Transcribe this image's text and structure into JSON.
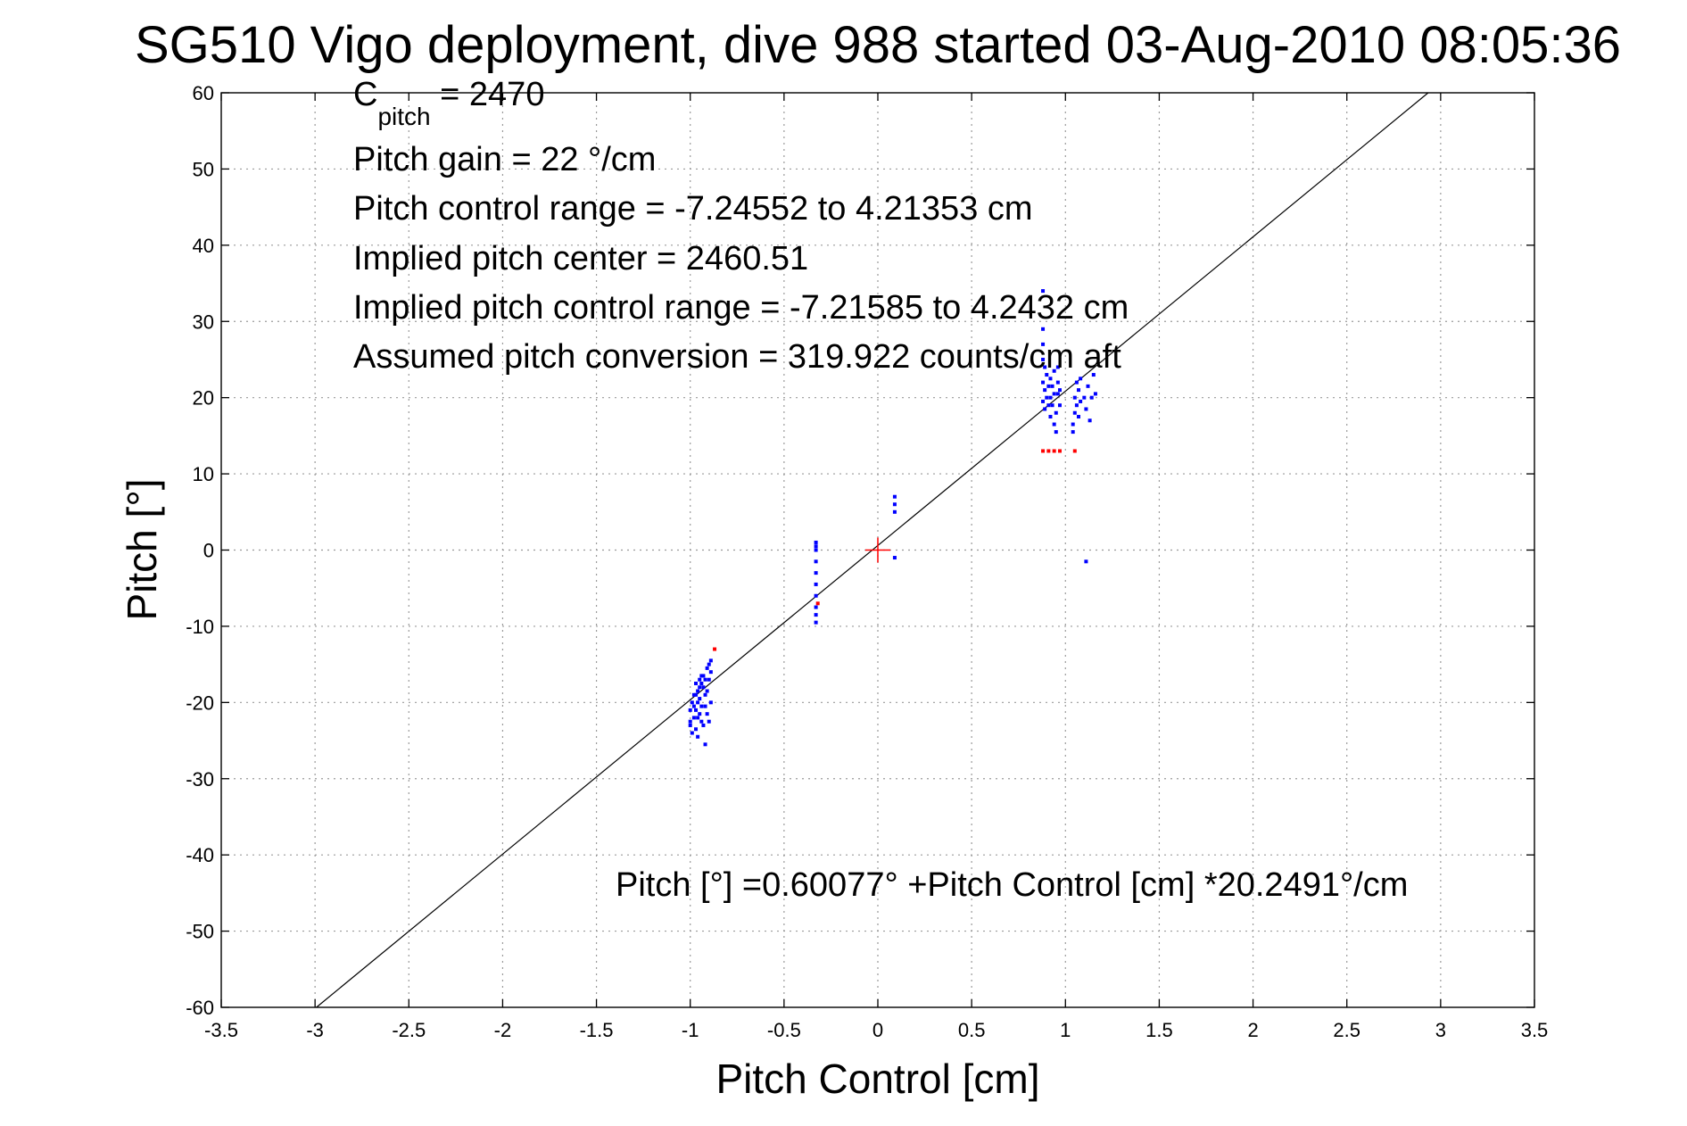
{
  "chart_data": {
    "type": "scatter",
    "title": "SG510 Vigo deployment, dive 988 started 03-Aug-2010 08:05:36",
    "xlabel": "Pitch Control [cm]",
    "ylabel": "Pitch [°]",
    "xlim": [
      -3.5,
      3.5
    ],
    "ylim": [
      -60,
      60
    ],
    "xticks": [
      -3.5,
      -3,
      -2.5,
      -2,
      -1.5,
      -1,
      -0.5,
      0,
      0.5,
      1,
      1.5,
      2,
      2.5,
      3,
      3.5
    ],
    "xtick_labels": [
      "-3.5",
      "-3",
      "-2.5",
      "-2",
      "-1.5",
      "-1",
      "-0.5",
      "0",
      "0.5",
      "1",
      "1.5",
      "2",
      "2.5",
      "3",
      "3.5"
    ],
    "yticks": [
      -60,
      -50,
      -40,
      -30,
      -20,
      -10,
      0,
      10,
      20,
      30,
      40,
      50,
      60
    ],
    "ytick_labels": [
      "-60",
      "-50",
      "-40",
      "-30",
      "-20",
      "-10",
      "0",
      "10",
      "20",
      "30",
      "40",
      "50",
      "60"
    ],
    "grid": true,
    "annotations": {
      "c_pitch": {
        "base": "C",
        "subscript": "pitch",
        "rest": " = 2470"
      },
      "lines": [
        "Pitch gain = 22 °/cm",
        "Pitch control range = -7.24552 to 4.21353 cm",
        "Implied pitch center = 2460.51",
        "Implied pitch control range = -7.21585 to 4.2432 cm",
        "Assumed pitch conversion = 319.922 counts/cm aft"
      ],
      "fit_equation": "Pitch [°] =0.60077° +Pitch Control [cm] *20.2491°/cm"
    },
    "fit_line": {
      "intercept": 0.60077,
      "slope": 20.2491,
      "color": "#000000"
    },
    "center_marker": {
      "x": 0,
      "y": 0,
      "color": "#ff0000"
    },
    "series": [
      {
        "color": "#0000ff",
        "points": [
          [
            -1.0,
            -22.5
          ],
          [
            -1.0,
            -21.0
          ],
          [
            -1.0,
            -23.0
          ],
          [
            -0.99,
            -24.0
          ],
          [
            -0.99,
            -20.0
          ],
          [
            -0.98,
            -22.0
          ],
          [
            -0.98,
            -19.0
          ],
          [
            -0.97,
            -21.0
          ],
          [
            -0.97,
            -17.5
          ],
          [
            -0.97,
            -23.5
          ],
          [
            -0.96,
            -20.0
          ],
          [
            -0.96,
            -18.5
          ],
          [
            -0.96,
            -22.0
          ],
          [
            -0.95,
            -21.5
          ],
          [
            -0.95,
            -17.0
          ],
          [
            -0.95,
            -19.5
          ],
          [
            -0.94,
            -16.5
          ],
          [
            -0.94,
            -22.5
          ],
          [
            -0.94,
            -20.5
          ],
          [
            -0.93,
            -18.0
          ],
          [
            -0.93,
            -16.5
          ],
          [
            -0.93,
            -23.0
          ],
          [
            -0.92,
            -19.0
          ],
          [
            -0.92,
            -25.5
          ],
          [
            -0.92,
            -17.0
          ],
          [
            -0.91,
            -21.5
          ],
          [
            -0.91,
            -15.5
          ],
          [
            -0.91,
            -18.5
          ],
          [
            -0.9,
            -17.0
          ],
          [
            -0.9,
            -15.0
          ],
          [
            -0.9,
            -22.5
          ],
          [
            -0.89,
            -16.0
          ],
          [
            -0.89,
            -14.5
          ],
          [
            -0.89,
            -20.0
          ],
          [
            -0.95,
            -18.0
          ],
          [
            -0.97,
            -19.0
          ],
          [
            -0.98,
            -20.5
          ],
          [
            -0.96,
            -24.5
          ],
          [
            -0.92,
            -20.5
          ],
          [
            -0.94,
            -17.5
          ],
          [
            -0.33,
            1.0
          ],
          [
            -0.33,
            0.0
          ],
          [
            -0.33,
            -1.5
          ],
          [
            -0.33,
            -3.0
          ],
          [
            -0.33,
            -4.5
          ],
          [
            -0.33,
            -6.0
          ],
          [
            -0.33,
            -7.5
          ],
          [
            -0.33,
            -8.5
          ],
          [
            -0.33,
            -9.5
          ],
          [
            -0.33,
            0.5
          ],
          [
            0.09,
            7.0
          ],
          [
            0.09,
            6.0
          ],
          [
            0.09,
            5.0
          ],
          [
            0.09,
            -1.0
          ],
          [
            0.88,
            34.0
          ],
          [
            0.88,
            29.0
          ],
          [
            0.88,
            27.0
          ],
          [
            0.88,
            25.0
          ],
          [
            0.88,
            22.0
          ],
          [
            0.88,
            19.5
          ],
          [
            0.89,
            18.5
          ],
          [
            0.89,
            21.0
          ],
          [
            0.89,
            24.0
          ],
          [
            0.9,
            20.0
          ],
          [
            0.9,
            23.0
          ],
          [
            0.91,
            19.0
          ],
          [
            0.91,
            21.5
          ],
          [
            0.92,
            22.5
          ],
          [
            0.92,
            20.0
          ],
          [
            0.92,
            17.5
          ],
          [
            0.93,
            19.0
          ],
          [
            0.93,
            21.5
          ],
          [
            0.94,
            16.5
          ],
          [
            0.94,
            20.5
          ],
          [
            0.94,
            23.5
          ],
          [
            0.95,
            15.5
          ],
          [
            0.95,
            18.0
          ],
          [
            0.96,
            22.0
          ],
          [
            0.96,
            24.0
          ],
          [
            0.96,
            20.5
          ],
          [
            0.97,
            21.0
          ],
          [
            0.97,
            19.0
          ],
          [
            1.04,
            16.5
          ],
          [
            1.04,
            15.5
          ],
          [
            1.05,
            18.0
          ],
          [
            1.05,
            20.0
          ],
          [
            1.06,
            22.0
          ],
          [
            1.06,
            19.0
          ],
          [
            1.07,
            21.0
          ],
          [
            1.07,
            17.5
          ],
          [
            1.08,
            19.5
          ],
          [
            1.08,
            22.5
          ],
          [
            1.1,
            20.0
          ],
          [
            1.11,
            18.5
          ],
          [
            1.12,
            21.5
          ],
          [
            1.13,
            17.0
          ],
          [
            1.14,
            20.0
          ],
          [
            1.15,
            23.0
          ],
          [
            1.16,
            20.5
          ],
          [
            1.11,
            -1.5
          ]
        ]
      },
      {
        "color": "#ff0000",
        "points": [
          [
            -0.87,
            -13.0
          ],
          [
            -0.32,
            -7.0
          ],
          [
            0.88,
            13.0
          ],
          [
            0.91,
            13.0
          ],
          [
            0.94,
            13.0
          ],
          [
            0.97,
            13.0
          ],
          [
            1.05,
            13.0
          ]
        ]
      }
    ]
  }
}
